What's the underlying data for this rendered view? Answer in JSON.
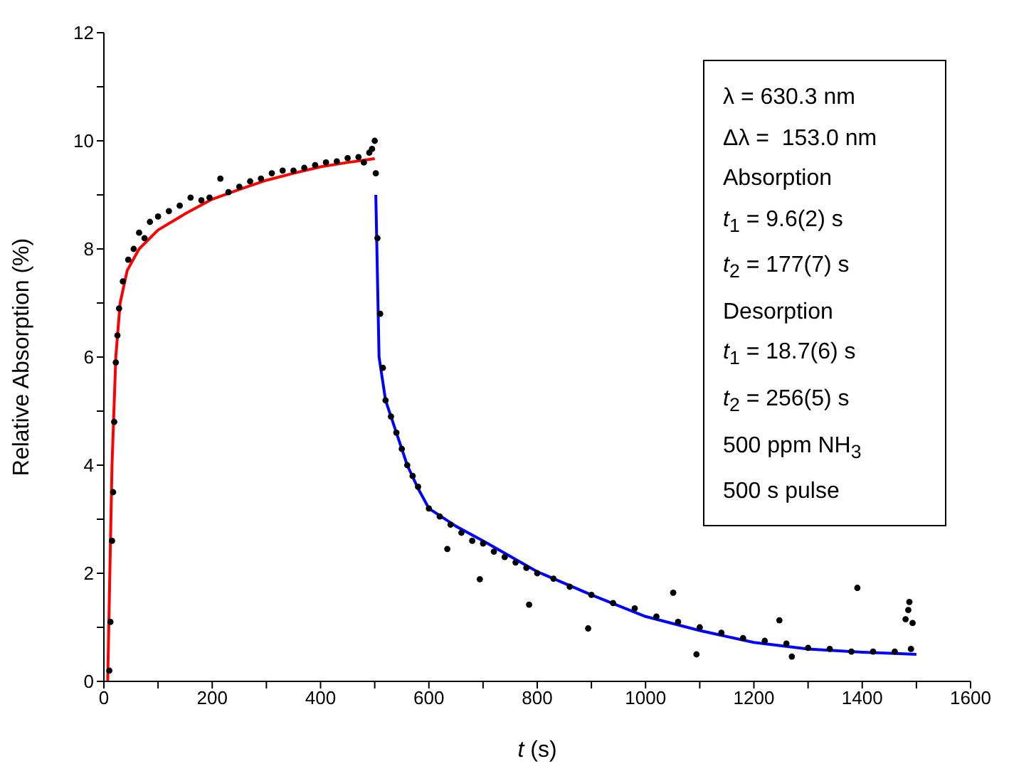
{
  "chart_data": {
    "type": "scatter",
    "xlabel": "t  (s)",
    "ylabel": "Relative Absorption (%)",
    "xlim": [
      0,
      1600
    ],
    "ylim": [
      0,
      12
    ],
    "xticks": [
      0,
      {
        "value": 100,
        "label": null
      },
      200,
      {
        "value": 300,
        "label": null
      },
      400,
      {
        "value": 500,
        "label": null
      },
      600,
      {
        "value": 700,
        "label": null
      },
      800,
      {
        "value": 900,
        "label": null
      },
      1000,
      {
        "value": 1100,
        "label": null
      },
      1200,
      {
        "value": 1300,
        "label": null
      },
      1400,
      {
        "value": 1500,
        "label": null
      },
      1600
    ],
    "yticks": [
      0,
      {
        "value": 1,
        "label": null
      },
      2,
      {
        "value": 3,
        "label": null
      },
      4,
      {
        "value": 5,
        "label": null
      },
      6,
      {
        "value": 7,
        "label": null
      },
      8,
      {
        "value": 9,
        "label": null
      },
      10,
      {
        "value": 11,
        "label": null
      },
      12
    ],
    "grid": false,
    "annotations": [
      "λ = 630.3 nm",
      "Δλ =  153.0 nm",
      "Absorption",
      "t$_{1}$ = 9.6(2) s",
      "t$_{2}$ = 177(7) s",
      "Desorption",
      "t$_{1}$ = 18.7(6) s",
      "t$_{2}$ = 256(5) s",
      "500 ppm NH$_{3}$",
      "500 s pulse"
    ],
    "series": [
      {
        "color": "#000000",
        "marker": "circle",
        "x": [
          10,
          12,
          15,
          17,
          19,
          22,
          25,
          28,
          35,
          45,
          55,
          65,
          75,
          85,
          100,
          120,
          140,
          160,
          180,
          195,
          215,
          230,
          250,
          270,
          290,
          310,
          330,
          350,
          370,
          390,
          410,
          430,
          450,
          470,
          480,
          490,
          495,
          500,
          502,
          505,
          510,
          515,
          520,
          530,
          540,
          550,
          560,
          570,
          580,
          600,
          620,
          634,
          640,
          660,
          680,
          694,
          700,
          720,
          740,
          760,
          780,
          785,
          800,
          830,
          860,
          894,
          900,
          940,
          980,
          1020,
          1051,
          1060,
          1094,
          1100,
          1140,
          1180,
          1220,
          1247,
          1260,
          1270,
          1300,
          1340,
          1380,
          1391,
          1420,
          1460,
          1480,
          1485,
          1487,
          1490,
          1493
        ],
        "values": [
          0.2,
          1.1,
          2.6,
          3.5,
          4.8,
          5.9,
          6.4,
          6.9,
          7.4,
          7.8,
          8.0,
          8.3,
          8.2,
          8.5,
          8.6,
          8.7,
          8.8,
          8.95,
          8.9,
          8.95,
          9.3,
          9.05,
          9.15,
          9.25,
          9.3,
          9.4,
          9.45,
          9.45,
          9.5,
          9.55,
          9.6,
          9.62,
          9.68,
          9.7,
          9.6,
          9.78,
          9.85,
          10.0,
          9.4,
          8.2,
          6.8,
          5.8,
          5.2,
          4.9,
          4.6,
          4.3,
          4.0,
          3.8,
          3.6,
          3.2,
          3.05,
          2.45,
          2.9,
          2.75,
          2.6,
          1.89,
          2.55,
          2.4,
          2.3,
          2.2,
          2.1,
          1.42,
          2.0,
          1.9,
          1.75,
          0.98,
          1.6,
          1.45,
          1.35,
          1.2,
          1.64,
          1.1,
          0.5,
          1.0,
          0.9,
          0.8,
          0.75,
          1.13,
          0.7,
          0.46,
          0.62,
          0.6,
          0.55,
          1.73,
          0.55,
          0.55,
          1.15,
          1.32,
          1.47,
          0.6,
          1.08
        ]
      },
      {
        "type": "line",
        "color": "#ff0000",
        "marker": "none",
        "line_style": "solid",
        "x": [
          7,
          11,
          15,
          22,
          30,
          43,
          65,
          100,
          150,
          200,
          250,
          300,
          350,
          400,
          450,
          500
        ],
        "values": [
          0,
          2,
          4,
          6,
          7,
          7.6,
          8,
          8.35,
          8.65,
          8.92,
          9.1,
          9.27,
          9.4,
          9.52,
          9.6,
          9.67
        ]
      },
      {
        "type": "line",
        "color": "#0000ff",
        "marker": "none",
        "line_style": "solid",
        "x": [
          502,
          508,
          520,
          540,
          560,
          580,
          600,
          650,
          700,
          800,
          900,
          1000,
          1100,
          1200,
          1300,
          1400,
          1500
        ],
        "values": [
          9.0,
          6.0,
          5.2,
          4.6,
          4.0,
          3.57,
          3.2,
          2.87,
          2.6,
          2.03,
          1.6,
          1.2,
          0.94,
          0.72,
          0.6,
          0.54,
          0.5
        ]
      }
    ]
  }
}
